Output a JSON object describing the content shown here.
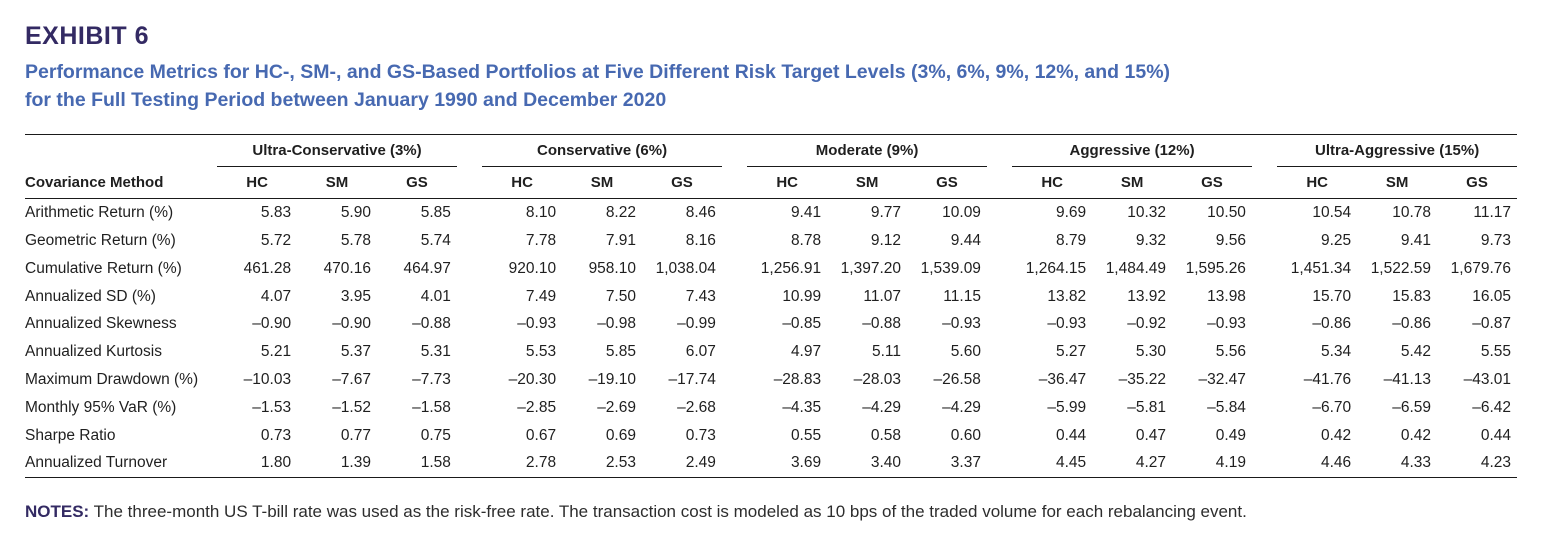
{
  "exhibit": {
    "label": "EXHIBIT 6",
    "title_line1": "Performance Metrics for HC-, SM-, and GS-Based Portfolios at Five Different Risk Target Levels (3%, 6%, 9%, 12%, and 15%)",
    "title_line2": "for the Full Testing Period between January 1990 and December 2020"
  },
  "colors": {
    "heading_navy": "#332a63",
    "title_blue": "#4769b1",
    "body_text": "#1f1f1f",
    "rule": "#1a1a1a"
  },
  "table": {
    "row_header_label": "Covariance Method",
    "groups": [
      {
        "label": "Ultra-Conservative (3%)",
        "sub_columns": [
          "HC",
          "SM",
          "GS"
        ]
      },
      {
        "label": "Conservative (6%)",
        "sub_columns": [
          "HC",
          "SM",
          "GS"
        ]
      },
      {
        "label": "Moderate (9%)",
        "sub_columns": [
          "HC",
          "SM",
          "GS"
        ]
      },
      {
        "label": "Aggressive (12%)",
        "sub_columns": [
          "HC",
          "SM",
          "GS"
        ]
      },
      {
        "label": "Ultra-Aggressive (15%)",
        "sub_columns": [
          "HC",
          "SM",
          "GS"
        ]
      }
    ],
    "rows": [
      {
        "label": "Arithmetic Return (%)",
        "values": [
          "5.83",
          "5.90",
          "5.85",
          "8.10",
          "8.22",
          "8.46",
          "9.41",
          "9.77",
          "10.09",
          "9.69",
          "10.32",
          "10.50",
          "10.54",
          "10.78",
          "11.17"
        ]
      },
      {
        "label": "Geometric Return (%)",
        "values": [
          "5.72",
          "5.78",
          "5.74",
          "7.78",
          "7.91",
          "8.16",
          "8.78",
          "9.12",
          "9.44",
          "8.79",
          "9.32",
          "9.56",
          "9.25",
          "9.41",
          "9.73"
        ]
      },
      {
        "label": "Cumulative Return (%)",
        "values": [
          "461.28",
          "470.16",
          "464.97",
          "920.10",
          "958.10",
          "1,038.04",
          "1,256.91",
          "1,397.20",
          "1,539.09",
          "1,264.15",
          "1,484.49",
          "1,595.26",
          "1,451.34",
          "1,522.59",
          "1,679.76"
        ]
      },
      {
        "label": "Annualized SD (%)",
        "values": [
          "4.07",
          "3.95",
          "4.01",
          "7.49",
          "7.50",
          "7.43",
          "10.99",
          "11.07",
          "11.15",
          "13.82",
          "13.92",
          "13.98",
          "15.70",
          "15.83",
          "16.05"
        ]
      },
      {
        "label": "Annualized Skewness",
        "values": [
          "–0.90",
          "–0.90",
          "–0.88",
          "–0.93",
          "–0.98",
          "–0.99",
          "–0.85",
          "–0.88",
          "–0.93",
          "–0.93",
          "–0.92",
          "–0.93",
          "–0.86",
          "–0.86",
          "–0.87"
        ]
      },
      {
        "label": "Annualized Kurtosis",
        "values": [
          "5.21",
          "5.37",
          "5.31",
          "5.53",
          "5.85",
          "6.07",
          "4.97",
          "5.11",
          "5.60",
          "5.27",
          "5.30",
          "5.56",
          "5.34",
          "5.42",
          "5.55"
        ]
      },
      {
        "label": "Maximum Drawdown (%)",
        "values": [
          "–10.03",
          "–7.67",
          "–7.73",
          "–20.30",
          "–19.10",
          "–17.74",
          "–28.83",
          "–28.03",
          "–26.58",
          "–36.47",
          "–35.22",
          "–32.47",
          "–41.76",
          "–41.13",
          "–43.01"
        ]
      },
      {
        "label": "Monthly 95% VaR (%)",
        "values": [
          "–1.53",
          "–1.52",
          "–1.58",
          "–2.85",
          "–2.69",
          "–2.68",
          "–4.35",
          "–4.29",
          "–4.29",
          "–5.99",
          "–5.81",
          "–5.84",
          "–6.70",
          "–6.59",
          "–6.42"
        ]
      },
      {
        "label": "Sharpe Ratio",
        "values": [
          "0.73",
          "0.77",
          "0.75",
          "0.67",
          "0.69",
          "0.73",
          "0.55",
          "0.58",
          "0.60",
          "0.44",
          "0.47",
          "0.49",
          "0.42",
          "0.42",
          "0.44"
        ]
      },
      {
        "label": "Annualized Turnover",
        "values": [
          "1.80",
          "1.39",
          "1.58",
          "2.78",
          "2.53",
          "2.49",
          "3.69",
          "3.40",
          "3.37",
          "4.45",
          "4.27",
          "4.19",
          "4.46",
          "4.33",
          "4.23"
        ]
      }
    ]
  },
  "notes": {
    "label": "NOTES:",
    "text": "The three-month US T-bill rate was used as the risk-free rate. The transaction cost is modeled as 10 bps of the traded volume for each rebalancing event."
  }
}
